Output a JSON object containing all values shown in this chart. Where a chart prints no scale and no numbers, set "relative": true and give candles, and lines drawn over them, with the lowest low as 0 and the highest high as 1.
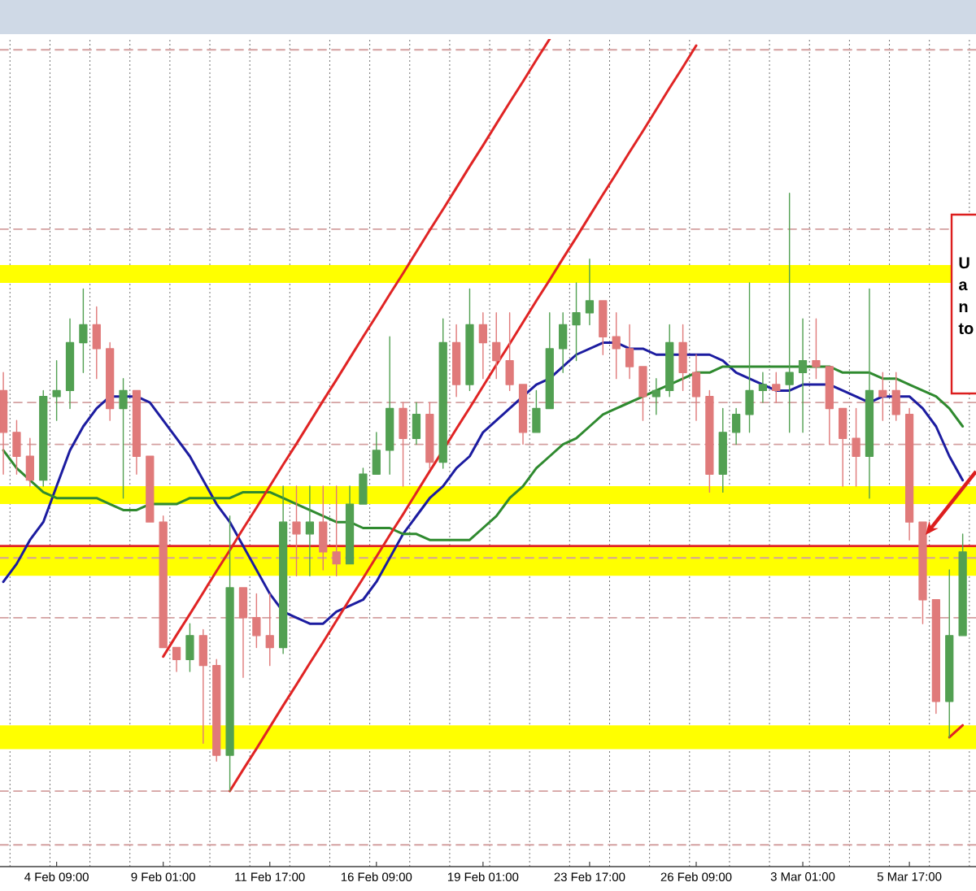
{
  "chart_data": {
    "type": "candlestick",
    "relative": true,
    "categories": [
      null,
      null,
      null,
      null,
      "4 Feb 09:00",
      null,
      null,
      null,
      null,
      null,
      null,
      null,
      "9 Feb 01:00",
      null,
      null,
      null,
      null,
      null,
      null,
      null,
      "11 Feb 17:00",
      null,
      null,
      null,
      null,
      null,
      null,
      null,
      "16 Feb 09:00",
      null,
      null,
      null,
      null,
      null,
      null,
      null,
      "19 Feb 01:00",
      null,
      null,
      null,
      null,
      null,
      null,
      null,
      "23 Feb 17:00",
      null,
      null,
      null,
      null,
      null,
      null,
      null,
      "26 Feb 09:00",
      null,
      null,
      null,
      null,
      null,
      null,
      null,
      "3 Mar 01:00",
      null,
      null,
      null,
      null,
      null,
      null,
      null,
      "5 Mar 17:00",
      null,
      null,
      null,
      null
    ],
    "ohlc": [
      [
        0.67,
        0.7,
        0.53,
        0.6
      ],
      [
        0.6,
        0.62,
        0.53,
        0.56
      ],
      [
        0.56,
        0.59,
        0.51,
        0.52
      ],
      [
        0.52,
        0.67,
        0.51,
        0.66
      ],
      [
        0.66,
        0.72,
        0.62,
        0.67
      ],
      [
        0.67,
        0.79,
        0.64,
        0.75
      ],
      [
        0.75,
        0.84,
        0.7,
        0.78
      ],
      [
        0.78,
        0.81,
        0.69,
        0.74
      ],
      [
        0.74,
        0.75,
        0.62,
        0.64
      ],
      [
        0.64,
        0.69,
        0.49,
        0.67
      ],
      [
        0.67,
        0.67,
        0.53,
        0.56
      ],
      [
        0.56,
        0.56,
        0.45,
        0.45
      ],
      [
        0.45,
        0.46,
        0.24,
        0.24
      ],
      [
        0.24,
        0.24,
        0.2,
        0.22
      ],
      [
        0.22,
        0.28,
        0.2,
        0.26
      ],
      [
        0.26,
        0.27,
        0.08,
        0.21
      ],
      [
        0.21,
        0.22,
        0.05,
        0.06
      ],
      [
        0.06,
        0.46,
        0,
        0.34
      ],
      [
        0.34,
        0.34,
        0.19,
        0.29
      ],
      [
        0.29,
        0.33,
        0.24,
        0.26
      ],
      [
        0.26,
        0.33,
        0.21,
        0.24
      ],
      [
        0.24,
        0.51,
        0.23,
        0.45
      ],
      [
        0.45,
        0.51,
        0.36,
        0.43
      ],
      [
        0.43,
        0.51,
        0.36,
        0.45
      ],
      [
        0.45,
        0.51,
        0.37,
        0.4
      ],
      [
        0.4,
        0.51,
        0.36,
        0.38
      ],
      [
        0.38,
        0.51,
        0.38,
        0.48
      ],
      [
        0.48,
        0.54,
        0.48,
        0.53
      ],
      [
        0.53,
        0.6,
        0.53,
        0.57
      ],
      [
        0.57,
        0.76,
        0.53,
        0.64
      ],
      [
        0.64,
        0.65,
        0.51,
        0.59
      ],
      [
        0.59,
        0.65,
        0.58,
        0.63
      ],
      [
        0.63,
        0.65,
        0.54,
        0.55
      ],
      [
        0.55,
        0.79,
        0.54,
        0.75
      ],
      [
        0.75,
        0.78,
        0.66,
        0.68
      ],
      [
        0.68,
        0.84,
        0.67,
        0.78
      ],
      [
        0.78,
        0.8,
        0.69,
        0.75
      ],
      [
        0.75,
        0.8,
        0.69,
        0.72
      ],
      [
        0.72,
        0.8,
        0.67,
        0.68
      ],
      [
        0.68,
        0.68,
        0.58,
        0.6
      ],
      [
        0.6,
        0.67,
        0.6,
        0.64
      ],
      [
        0.64,
        0.8,
        0.64,
        0.74
      ],
      [
        0.74,
        0.8,
        0.7,
        0.78
      ],
      [
        0.78,
        0.85,
        0.72,
        0.8
      ],
      [
        0.8,
        0.89,
        0.78,
        0.82
      ],
      [
        0.82,
        0.82,
        0.73,
        0.76
      ],
      [
        0.76,
        0.8,
        0.69,
        0.74
      ],
      [
        0.74,
        0.78,
        0.69,
        0.71
      ],
      [
        0.71,
        0.71,
        0.62,
        0.66
      ],
      [
        0.66,
        0.69,
        0.63,
        0.67
      ],
      [
        0.67,
        0.78,
        0.66,
        0.75
      ],
      [
        0.75,
        0.78,
        0.67,
        0.7
      ],
      [
        0.7,
        0.73,
        0.62,
        0.66
      ],
      [
        0.66,
        0.67,
        0.5,
        0.53
      ],
      [
        0.53,
        0.64,
        0.5,
        0.6
      ],
      [
        0.6,
        0.64,
        0.58,
        0.63
      ],
      [
        0.63,
        0.85,
        0.6,
        0.67
      ],
      [
        0.67,
        0.7,
        0.65,
        0.68
      ],
      [
        0.68,
        0.7,
        0.65,
        0.67
      ],
      [
        0.68,
        1,
        0.6,
        0.7
      ],
      [
        0.7,
        0.79,
        0.6,
        0.72
      ],
      [
        0.72,
        0.79,
        0.69,
        0.71
      ],
      [
        0.71,
        0.71,
        0.58,
        0.64
      ],
      [
        0.64,
        0.64,
        0.51,
        0.59
      ],
      [
        0.59,
        0.64,
        0.51,
        0.56
      ],
      [
        0.56,
        0.84,
        0.49,
        0.67
      ],
      [
        0.67,
        0.7,
        0.62,
        0.66
      ],
      [
        0.67,
        0.7,
        0.62,
        0.63
      ],
      [
        0.63,
        0.64,
        0.42,
        0.45
      ],
      [
        0.45,
        0.45,
        0.28,
        0.32
      ],
      [
        0.32,
        0.32,
        0.13,
        0.15
      ],
      [
        0.15,
        0.37,
        0.09,
        0.26
      ],
      [
        0.26,
        0.43,
        0.26,
        0.4
      ]
    ],
    "colors": [
      "#e07a7a",
      "#e07a7a",
      "#e07a7a",
      "#52a052",
      "#52a052",
      "#52a052",
      "#52a052",
      "#e07a7a",
      "#e07a7a",
      "#52a052",
      "#e07a7a",
      "#e07a7a",
      "#e07a7a",
      "#e07a7a",
      "#52a052",
      "#e07a7a",
      "#e07a7a",
      "#52a052",
      "#e07a7a",
      "#e07a7a",
      "#e07a7a",
      "#52a052",
      "#e07a7a",
      "#52a052",
      "#e07a7a",
      "#e07a7a",
      "#52a052",
      "#52a052",
      "#52a052",
      "#52a052",
      "#e07a7a",
      "#52a052",
      "#e07a7a",
      "#52a052",
      "#e07a7a",
      "#52a052",
      "#e07a7a",
      "#e07a7a",
      "#e07a7a",
      "#e07a7a",
      "#52a052",
      "#52a052",
      "#52a052",
      "#52a052",
      "#52a052",
      "#e07a7a",
      "#e07a7a",
      "#e07a7a",
      "#e07a7a",
      "#52a052",
      "#52a052",
      "#e07a7a",
      "#e07a7a",
      "#e07a7a",
      "#52a052",
      "#52a052",
      "#52a052",
      "#52a052",
      "#e07a7a",
      "#52a052",
      "#52a052",
      "#e07a7a",
      "#e07a7a",
      "#e07a7a",
      "#e07a7a",
      "#52a052",
      "#e07a7a",
      "#e07a7a",
      "#e07a7a",
      "#e07a7a",
      "#e07a7a",
      "#52a052",
      "#52a052"
    ],
    "series": [
      {
        "type": "line",
        "color": "#1c1ca0",
        "values": [
          0.35,
          0.38,
          0.42,
          0.45,
          0.51,
          0.57,
          0.61,
          0.64,
          0.66,
          0.66,
          0.66,
          0.65,
          0.62,
          0.59,
          0.56,
          0.52,
          0.48,
          0.45,
          0.41,
          0.37,
          0.33,
          0.3,
          0.29,
          0.28,
          0.28,
          0.3,
          0.31,
          0.32,
          0.35,
          0.39,
          0.43,
          0.46,
          0.49,
          0.51,
          0.54,
          0.56,
          0.6,
          0.62,
          0.64,
          0.66,
          0.68,
          0.69,
          0.71,
          0.73,
          0.74,
          0.75,
          0.75,
          0.74,
          0.74,
          0.73,
          0.73,
          0.73,
          0.73,
          0.73,
          0.72,
          0.7,
          0.69,
          0.68,
          0.67,
          0.67,
          0.68,
          0.68,
          0.68,
          0.67,
          0.66,
          0.65,
          0.66,
          0.66,
          0.66,
          0.64,
          0.61,
          0.56,
          0.52
        ]
      },
      {
        "type": "line",
        "color": "#2f8a2f",
        "values": [
          0.57,
          0.54,
          0.52,
          0.5,
          0.49,
          0.49,
          0.49,
          0.49,
          0.48,
          0.47,
          0.47,
          0.48,
          0.48,
          0.48,
          0.49,
          0.49,
          0.49,
          0.49,
          0.5,
          0.5,
          0.5,
          0.49,
          0.48,
          0.47,
          0.46,
          0.45,
          0.45,
          0.44,
          0.44,
          0.44,
          0.43,
          0.43,
          0.42,
          0.42,
          0.42,
          0.42,
          0.44,
          0.46,
          0.49,
          0.51,
          0.54,
          0.56,
          0.58,
          0.59,
          0.61,
          0.63,
          0.64,
          0.65,
          0.66,
          0.67,
          0.68,
          0.69,
          0.7,
          0.7,
          0.71,
          0.71,
          0.71,
          0.71,
          0.71,
          0.71,
          0.71,
          0.71,
          0.71,
          0.7,
          0.7,
          0.7,
          0.69,
          0.69,
          0.68,
          0.67,
          0.66,
          0.64,
          0.61
        ]
      },
      {
        "type": "line",
        "color": "#e02424",
        "values": [
          null,
          null,
          null,
          null,
          null,
          null,
          null,
          null,
          null,
          null,
          null,
          null,
          0.225,
          0.261,
          0.296,
          0.332,
          0.368,
          0.403,
          0.439,
          0.474,
          0.51,
          0.546,
          0.581,
          0.617,
          0.653,
          0.688,
          0.724,
          0.76,
          0.795,
          0.831,
          0.866,
          0.902,
          0.938,
          0.973,
          1.009,
          1.045,
          1.08,
          1.116,
          1.152,
          1.187,
          1.223,
          1.258,
          null,
          null,
          null,
          null,
          null,
          null,
          null,
          null,
          null,
          null,
          null,
          null,
          null,
          null,
          null,
          null,
          null,
          null,
          null,
          null,
          null,
          null,
          null,
          null,
          null,
          null,
          null,
          null,
          null,
          null,
          null
        ]
      },
      {
        "type": "line",
        "color": "#e02424",
        "values": [
          null,
          null,
          null,
          null,
          null,
          null,
          null,
          null,
          null,
          null,
          null,
          null,
          null,
          null,
          null,
          null,
          null,
          0,
          0.036,
          0.071,
          0.107,
          0.143,
          0.178,
          0.214,
          0.249,
          0.285,
          0.321,
          0.356,
          0.392,
          0.428,
          0.463,
          0.499,
          0.535,
          0.57,
          0.606,
          0.641,
          0.677,
          0.713,
          0.748,
          0.784,
          0.82,
          0.855,
          0.891,
          0.926,
          0.962,
          0.998,
          1.033,
          1.069,
          1.104,
          1.14,
          1.176,
          1.211,
          1.247,
          null,
          null,
          null,
          null,
          null,
          null,
          null,
          null,
          null,
          null,
          null,
          null,
          null,
          null,
          null,
          null,
          null,
          null,
          null,
          null
        ]
      },
      {
        "type": "line",
        "color": "#e02424",
        "values": [
          null,
          null,
          null,
          null,
          null,
          null,
          null,
          null,
          null,
          null,
          null,
          null,
          null,
          null,
          null,
          null,
          null,
          null,
          null,
          null,
          null,
          null,
          null,
          null,
          null,
          null,
          null,
          null,
          null,
          null,
          null,
          null,
          null,
          null,
          null,
          null,
          null,
          null,
          null,
          null,
          null,
          null,
          null,
          null,
          null,
          null,
          null,
          null,
          null,
          null,
          null,
          null,
          null,
          null,
          null,
          null,
          null,
          null,
          null,
          null,
          null,
          null,
          null,
          null,
          null,
          null,
          null,
          null,
          null,
          null,
          null,
          0.09,
          0.11
        ]
      }
    ],
    "grid": "x",
    "bands": [
      {
        "axis": "y",
        "from": 0.85,
        "to": 0.88,
        "color": "#ffff00"
      },
      {
        "axis": "y",
        "from": 0.48,
        "to": 0.51,
        "color": "#ffff00"
      },
      {
        "axis": "y",
        "from": 0.36,
        "to": 0.41,
        "color": "#ffff00"
      },
      {
        "axis": "y",
        "from": 0.07,
        "to": 0.11,
        "color": "#ffff00"
      }
    ],
    "ref_lines": [
      {
        "axis": "y",
        "value": 1.24,
        "color": "#d4a0a0",
        "line_style": "dashed"
      },
      {
        "axis": "y",
        "value": 0.94,
        "color": "#d4a0a0",
        "line_style": "dashed"
      },
      {
        "axis": "y",
        "value": 0.65,
        "color": "#d4a0a0",
        "line_style": "dashed"
      },
      {
        "axis": "y",
        "value": 0.58,
        "color": "#d4a0a0",
        "line_style": "dashed"
      },
      {
        "axis": "y",
        "value": 0.39,
        "color": "#d4a0a0",
        "line_style": "dashed"
      },
      {
        "axis": "y",
        "value": 0.29,
        "color": "#d4a0a0",
        "line_style": "dashed"
      },
      {
        "axis": "y",
        "value": 0,
        "color": "#d4a0a0",
        "line_style": "dashed"
      },
      {
        "axis": "y",
        "value": -0.09,
        "color": "#d4a0a0",
        "line_style": "dashed"
      },
      {
        "axis": "y",
        "value": 0.41,
        "color": "#e02424",
        "line_style": "solid"
      }
    ],
    "annotations": [
      "U",
      "a",
      "n",
      "to"
    ]
  }
}
